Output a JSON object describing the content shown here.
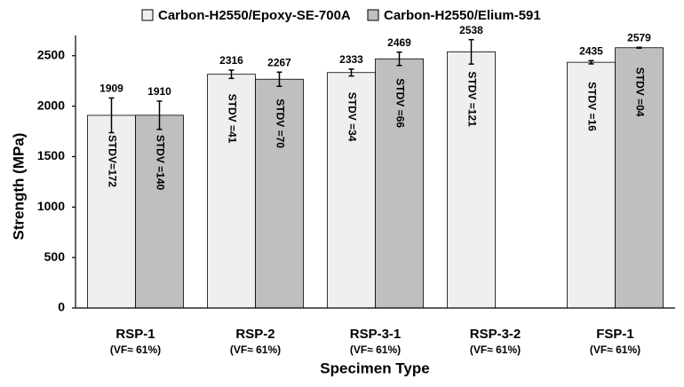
{
  "chart_data": {
    "type": "bar",
    "x_label": "Specimen Type",
    "y_label": "Strength (MPa)",
    "categories": [
      "RSP-1",
      "RSP-2",
      "RSP-3-1",
      "RSP-3-2",
      "FSP-1"
    ],
    "category_sublabels": [
      "(VF≈ 61%)",
      "(VF≈ 61%)",
      "(VF≈ 61%)",
      "(VF≈ 61%)",
      "(VF≈ 61%)"
    ],
    "series": [
      {
        "name": "Carbon-H2550/Epoxy-SE-700A",
        "color": "#efefef",
        "values": [
          1909,
          2316,
          2333,
          2538,
          2435
        ],
        "errors": [
          172,
          41,
          34,
          121,
          16
        ],
        "error_labels": [
          "STDV=172",
          "STDV =41",
          "STDV =34",
          "STDV =121",
          "STDV =16"
        ]
      },
      {
        "name": "Carbon-H2550/Elium-591",
        "color": "#bfbfbf",
        "values": [
          1910,
          2267,
          2469,
          null,
          2579
        ],
        "errors": [
          140,
          70,
          66,
          null,
          4
        ],
        "error_labels": [
          "STDV =140",
          "STDV =70",
          "STDV =66",
          null,
          "STDV =04"
        ]
      }
    ],
    "ylim": [
      0,
      2700
    ],
    "yticks": [
      0,
      500,
      1000,
      1500,
      2000,
      2500
    ],
    "grid": false,
    "legend": "top"
  }
}
